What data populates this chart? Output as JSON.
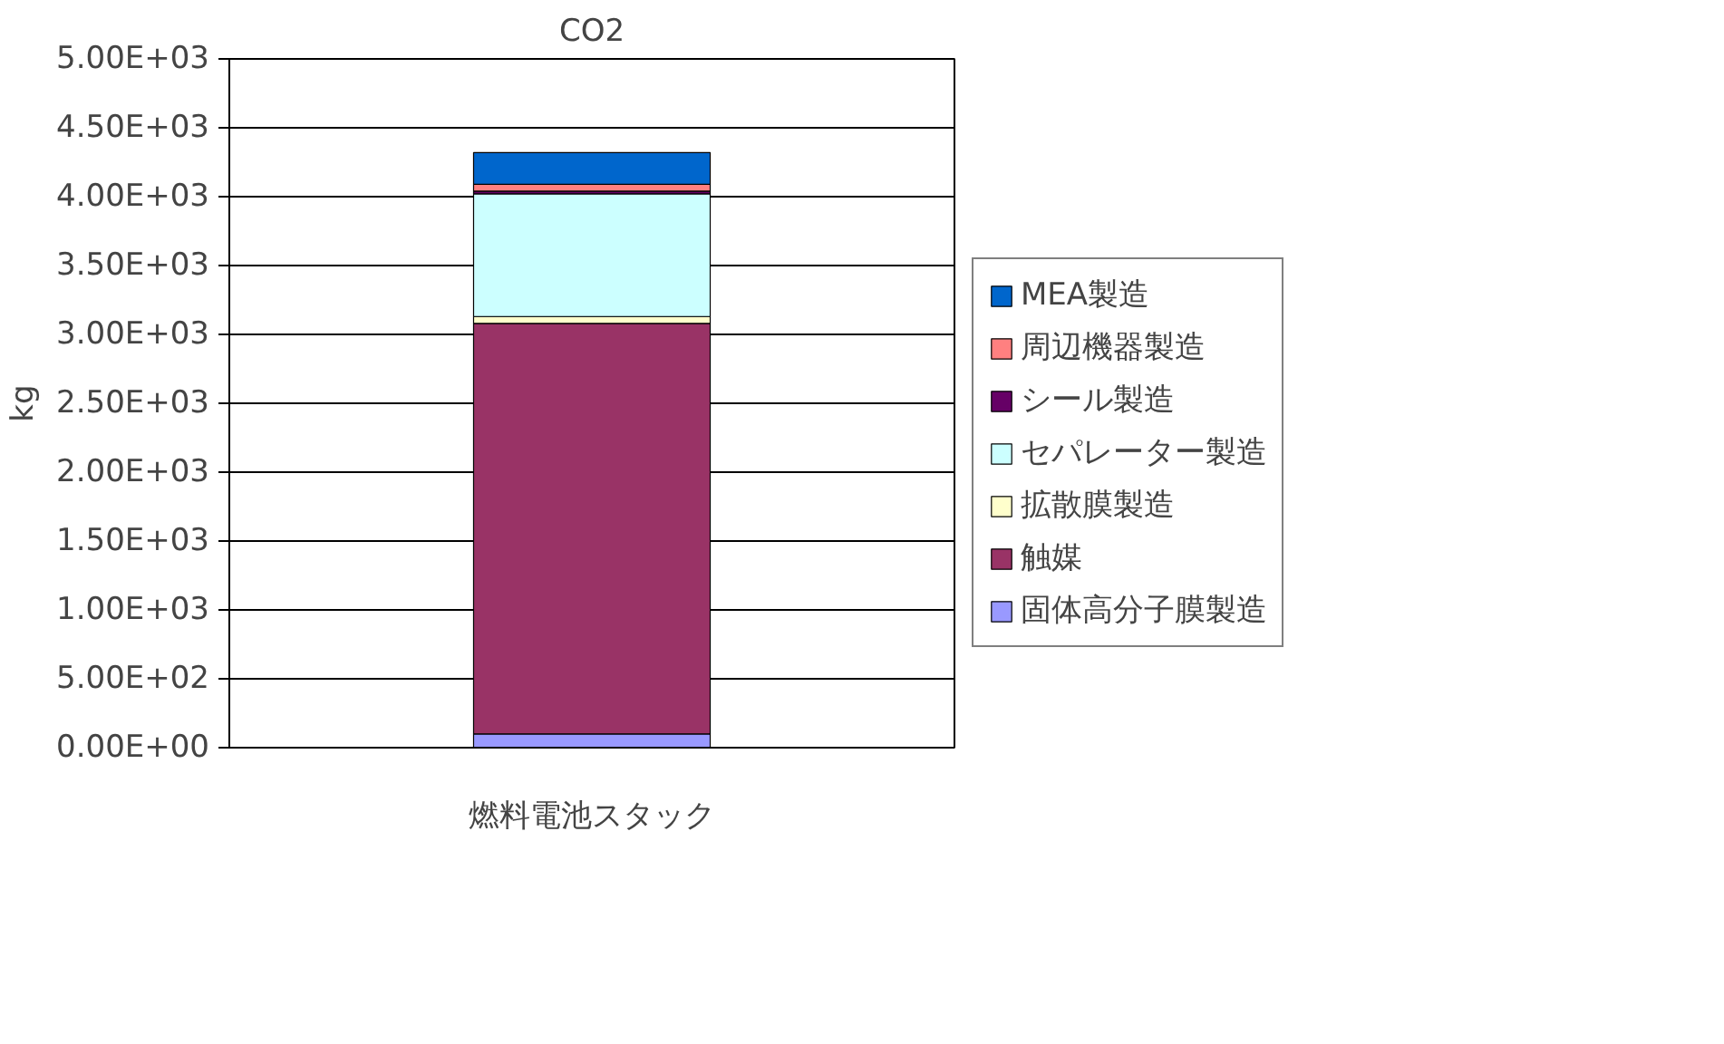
{
  "chart_data": {
    "type": "bar",
    "title": "CO2",
    "ylabel": "kg",
    "stacked": true,
    "legend": "right",
    "grid": "y",
    "categories": [
      "燃料電池スタック"
    ],
    "ylim": [
      0,
      5000
    ],
    "yticks": [
      {
        "value": 0,
        "label": "0.00E+00"
      },
      {
        "value": 500,
        "label": "5.00E+02"
      },
      {
        "value": 1000,
        "label": "1.00E+03"
      },
      {
        "value": 1500,
        "label": "1.50E+03"
      },
      {
        "value": 2000,
        "label": "2.00E+03"
      },
      {
        "value": 2500,
        "label": "2.50E+03"
      },
      {
        "value": 3000,
        "label": "3.00E+03"
      },
      {
        "value": 3500,
        "label": "3.50E+03"
      },
      {
        "value": 4000,
        "label": "4.00E+03"
      },
      {
        "value": 4500,
        "label": "4.50E+03"
      },
      {
        "value": 5000,
        "label": "5.00E+03"
      }
    ],
    "series": [
      {
        "name": "固体高分子膜製造",
        "color": "#9999ff",
        "values": [
          100
        ]
      },
      {
        "name": "触媒",
        "color": "#993366",
        "values": [
          2980
        ]
      },
      {
        "name": "拡散膜製造",
        "color": "#ffffcc",
        "values": [
          50
        ]
      },
      {
        "name": "セパレーター製造",
        "color": "#ccffff",
        "values": [
          890
        ]
      },
      {
        "name": "シール製造",
        "color": "#660066",
        "values": [
          20
        ]
      },
      {
        "name": "周辺機器製造",
        "color": "#ff8080",
        "values": [
          50
        ]
      },
      {
        "name": "MEA製造",
        "color": "#0066cc",
        "values": [
          230
        ]
      }
    ]
  }
}
